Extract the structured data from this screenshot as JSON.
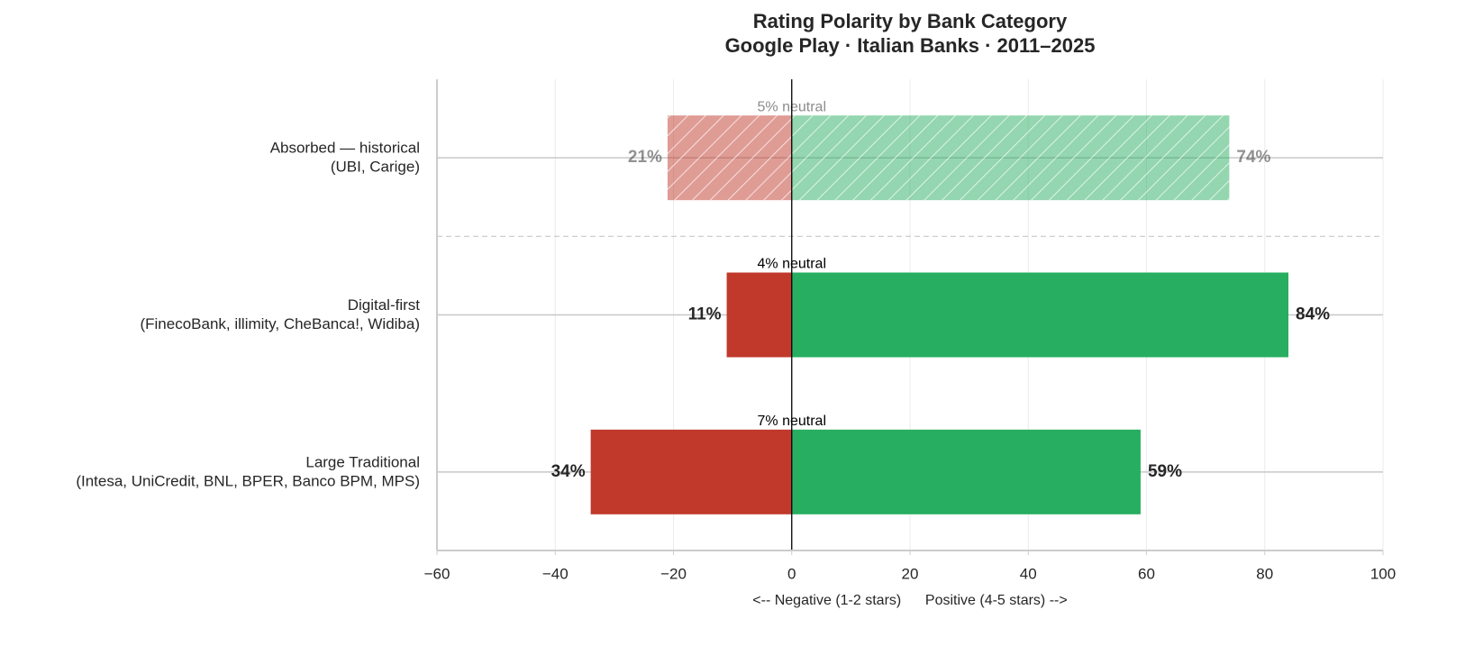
{
  "chart_data": {
    "type": "diverging-bar",
    "title": "Rating Polarity by Bank Category",
    "subtitle": "Google Play · Italian Banks · 2011–2025",
    "x_label": "<-- Negative (1-2 stars)      Positive (4-5 stars) -->",
    "categories": [
      [
        "Large Traditional",
        "(Intesa, UniCredit, BNL, BPER, Banco BPM, MPS)"
      ],
      [
        "Digital-first",
        "(FinecoBank, illimity, CheBanca!, Widiba)"
      ],
      [
        "Absorbed — historical",
        "(UBI, Carige)"
      ]
    ],
    "series": [
      {
        "name": "Negative (1-2 stars)",
        "color": "#c0392b",
        "values": [
          -34,
          -11,
          -21
        ],
        "value_labels": [
          "34%",
          "11%",
          "21%"
        ]
      },
      {
        "name": "Positive (4-5 stars)",
        "color": "#27ae60",
        "values": [
          59,
          84,
          74
        ],
        "value_labels": [
          "59%",
          "84%",
          "74%"
        ]
      }
    ],
    "annotations": [
      "7% neutral",
      "4% neutral",
      "5% neutral"
    ],
    "hatched": [
      false,
      false,
      true
    ],
    "xlim": [
      -60,
      100
    ],
    "xticks": [
      {
        "value": -60,
        "label": "−60"
      },
      {
        "value": -40,
        "label": "−40"
      },
      {
        "value": -20,
        "label": "−20"
      },
      0,
      20,
      40,
      60,
      80,
      100
    ],
    "grid": true
  }
}
